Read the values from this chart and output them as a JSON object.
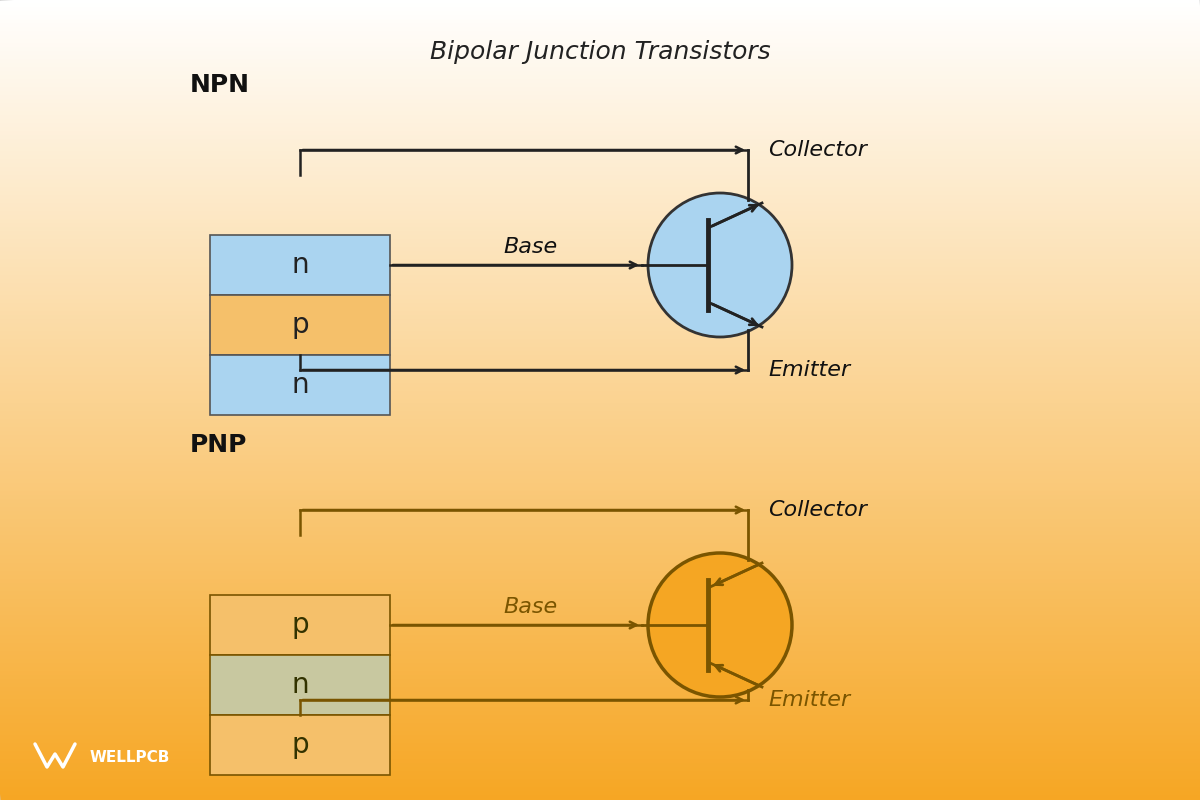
{
  "title": "Bipolar Junction Transistors",
  "title_fontsize": 18,
  "title_style": "italic",
  "bg_top_color": "#ffffff",
  "bg_bottom_color": "#f5a623",
  "npn_label": "NPN",
  "pnp_label": "PNP",
  "npn_layers": [
    "n",
    "p",
    "n"
  ],
  "pnp_layers": [
    "p",
    "n",
    "p"
  ],
  "npn_layer_colors": [
    "#aad4f0",
    "#f5c06a",
    "#aad4f0"
  ],
  "pnp_layer_colors": [
    "#f5c06a",
    "#c8c8a0",
    "#f5c06a"
  ],
  "collector_label": "Collector",
  "emitter_label": "Emitter",
  "base_label": "Base",
  "npn_circle_color": "#aad4f0",
  "npn_circle_edge": "#333333",
  "pnp_circle_color": "#f5a623",
  "pnp_circle_edge": "#7a5500",
  "npn_line_color": "#222222",
  "pnp_line_color": "#7a5500",
  "label_fontsize": 16,
  "layer_fontsize": 20,
  "logo_text": "WELLPCB",
  "wellpcb_color": "#ffffff"
}
